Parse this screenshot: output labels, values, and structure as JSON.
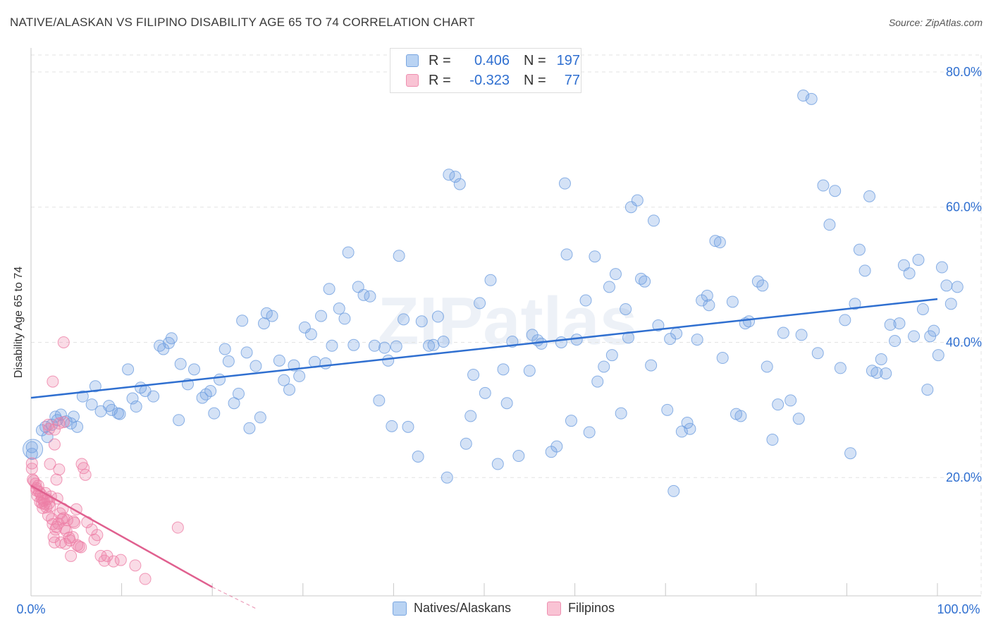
{
  "title": "NATIVE/ALASKAN VS FILIPINO DISABILITY AGE 65 TO 74 CORRELATION CHART",
  "source": "Source: ZipAtlas.com",
  "watermark": "ZIPatlas",
  "legend": {
    "rows": [
      {
        "r_label": "R =",
        "r_value": "0.406",
        "n_label": "N =",
        "n_value": "197",
        "color": "#6f9fe0"
      },
      {
        "r_label": "R =",
        "r_value": "-0.323",
        "n_label": "N =",
        "n_value": "77",
        "color": "#ee7fa6"
      }
    ]
  },
  "bottom_legend": [
    "Natives/Alaskans",
    "Filipinos"
  ],
  "chart_data": {
    "type": "scatter",
    "title": "NATIVE/ALASKAN VS FILIPINO DISABILITY AGE 65 TO 74 CORRELATION CHART",
    "xlabel": "",
    "ylabel": "Disability Age 65 to 74",
    "xlim": [
      0,
      100
    ],
    "ylim": [
      2.5,
      82.5
    ],
    "x_tick_labels": [
      "0.0%",
      "100.0%"
    ],
    "y_ticks": [
      20,
      40,
      60,
      80
    ],
    "y_tick_labels": [
      "20.0%",
      "40.0%",
      "60.0%",
      "80.0%"
    ],
    "grid": true,
    "legend_position": "top-center",
    "colors": {
      "natives": "#6f9fe0",
      "filipinos": "#ee7fa6",
      "natives_line": "#2f6fd0",
      "filipinos_line": "#e0608f"
    },
    "series": [
      {
        "name": "Natives/Alaskans",
        "R": 0.406,
        "N": 197,
        "trend": [
          [
            0,
            31.8
          ],
          [
            100,
            46.4
          ]
        ],
        "points": [
          [
            0.1,
            24.5
          ],
          [
            0.1,
            23.5
          ],
          [
            1.2,
            27
          ],
          [
            1.6,
            27.5
          ],
          [
            1.8,
            26
          ],
          [
            2.3,
            27.8
          ],
          [
            2.7,
            29
          ],
          [
            2.9,
            28.5
          ],
          [
            3.3,
            29.3
          ],
          [
            3.9,
            28.3
          ],
          [
            4.4,
            28
          ],
          [
            4.7,
            29
          ],
          [
            5.1,
            27.5
          ],
          [
            5.7,
            32
          ],
          [
            6.7,
            30.8
          ],
          [
            7.1,
            33.5
          ],
          [
            7.7,
            29.8
          ],
          [
            8.6,
            30.6
          ],
          [
            8.9,
            30
          ],
          [
            9.6,
            29.5
          ],
          [
            9.8,
            29.4
          ],
          [
            10.7,
            36
          ],
          [
            11.2,
            31.7
          ],
          [
            11.6,
            30.5
          ],
          [
            12.1,
            33.3
          ],
          [
            12.6,
            32.8
          ],
          [
            13.5,
            32
          ],
          [
            14.2,
            39.5
          ],
          [
            14.6,
            39
          ],
          [
            15.2,
            39.9
          ],
          [
            15.5,
            40.6
          ],
          [
            16.3,
            28.5
          ],
          [
            16.5,
            36.8
          ],
          [
            17.3,
            33.8
          ],
          [
            18,
            36
          ],
          [
            18.9,
            31.8
          ],
          [
            19.3,
            32.3
          ],
          [
            19.8,
            32.8
          ],
          [
            20.2,
            29.5
          ],
          [
            20.8,
            34.5
          ],
          [
            21.4,
            39
          ],
          [
            21.8,
            37.2
          ],
          [
            22.4,
            31
          ],
          [
            22.9,
            32.4
          ],
          [
            23.3,
            43.2
          ],
          [
            23.8,
            38.5
          ],
          [
            24.1,
            27.3
          ],
          [
            24.8,
            36.5
          ],
          [
            25.3,
            28.9
          ],
          [
            25.7,
            42.8
          ],
          [
            26,
            44.3
          ],
          [
            26.6,
            43.9
          ],
          [
            27.4,
            37.3
          ],
          [
            27.9,
            34.4
          ],
          [
            28.5,
            33
          ],
          [
            29,
            36.6
          ],
          [
            29.6,
            35
          ],
          [
            30.2,
            42.2
          ],
          [
            30.9,
            41.2
          ],
          [
            31.3,
            37.1
          ],
          [
            32,
            43.9
          ],
          [
            32.5,
            36.9
          ],
          [
            32.9,
            47.9
          ],
          [
            33.2,
            39.5
          ],
          [
            34,
            45
          ],
          [
            34.6,
            43.5
          ],
          [
            35,
            53.3
          ],
          [
            35.6,
            39.6
          ],
          [
            36.1,
            48.2
          ],
          [
            36.7,
            47
          ],
          [
            37.4,
            46.8
          ],
          [
            37.9,
            39.5
          ],
          [
            38.4,
            31.4
          ],
          [
            39,
            39.2
          ],
          [
            39.4,
            37.3
          ],
          [
            39.8,
            27.6
          ],
          [
            40.3,
            39.4
          ],
          [
            40.6,
            52.8
          ],
          [
            41.1,
            43.4
          ],
          [
            41.6,
            27.5
          ],
          [
            42.7,
            23.1
          ],
          [
            43.1,
            43.1
          ],
          [
            43.9,
            39.5
          ],
          [
            44.4,
            39.6
          ],
          [
            44.9,
            43.8
          ],
          [
            45.5,
            40.1
          ],
          [
            45.9,
            20
          ],
          [
            46.1,
            64.8
          ],
          [
            46.8,
            64.5
          ],
          [
            47.3,
            63.4
          ],
          [
            48,
            25
          ],
          [
            48.5,
            29.1
          ],
          [
            48.8,
            35.2
          ],
          [
            49.5,
            45.8
          ],
          [
            50.1,
            32.5
          ],
          [
            50.7,
            49.2
          ],
          [
            51.5,
            22
          ],
          [
            52.1,
            36
          ],
          [
            52.5,
            31
          ],
          [
            53.1,
            40.1
          ],
          [
            53.8,
            23.2
          ],
          [
            55,
            35.8
          ],
          [
            55.3,
            41.1
          ],
          [
            55.9,
            40.3
          ],
          [
            56.3,
            39.8
          ],
          [
            57.4,
            23.8
          ],
          [
            58,
            24.6
          ],
          [
            58.5,
            40
          ],
          [
            58.9,
            63.5
          ],
          [
            59.1,
            53
          ],
          [
            59.6,
            28.4
          ],
          [
            60.2,
            40.4
          ],
          [
            61.2,
            46.2
          ],
          [
            61.6,
            26.7
          ],
          [
            62.2,
            52.7
          ],
          [
            62.5,
            34.2
          ],
          [
            63.2,
            36.4
          ],
          [
            63.8,
            48.2
          ],
          [
            64.1,
            38.1
          ],
          [
            64.5,
            50.1
          ],
          [
            65.1,
            29.5
          ],
          [
            65.6,
            44.9
          ],
          [
            65.9,
            40.7
          ],
          [
            66.2,
            60
          ],
          [
            66.9,
            61
          ],
          [
            67.3,
            49.4
          ],
          [
            67.7,
            49
          ],
          [
            68.4,
            36.6
          ],
          [
            68.7,
            58
          ],
          [
            69.2,
            42.5
          ],
          [
            70.2,
            30
          ],
          [
            70.5,
            40.5
          ],
          [
            70.9,
            18
          ],
          [
            71.2,
            41.3
          ],
          [
            71.8,
            26.8
          ],
          [
            72.4,
            28.1
          ],
          [
            72.7,
            27.2
          ],
          [
            73.5,
            40.4
          ],
          [
            74,
            46.2
          ],
          [
            74.6,
            46.9
          ],
          [
            74.8,
            45.5
          ],
          [
            75.5,
            55
          ],
          [
            76,
            54.8
          ],
          [
            76.3,
            37.7
          ],
          [
            77.4,
            46
          ],
          [
            77.8,
            29.4
          ],
          [
            78.3,
            29.1
          ],
          [
            78.8,
            42.8
          ],
          [
            79.2,
            43.1
          ],
          [
            80.2,
            49
          ],
          [
            80.7,
            48.4
          ],
          [
            81.2,
            36.4
          ],
          [
            81.8,
            25.6
          ],
          [
            82.4,
            30.8
          ],
          [
            83,
            41.4
          ],
          [
            83.8,
            31.4
          ],
          [
            84.7,
            28.7
          ],
          [
            85,
            41.1
          ],
          [
            85.2,
            76.5
          ],
          [
            86.1,
            76
          ],
          [
            86.8,
            38.4
          ],
          [
            87.4,
            63.2
          ],
          [
            88.1,
            57.4
          ],
          [
            88.7,
            62.4
          ],
          [
            89.3,
            36.2
          ],
          [
            89.8,
            43.3
          ],
          [
            90.4,
            23.6
          ],
          [
            90.9,
            45.7
          ],
          [
            91.4,
            53.7
          ],
          [
            92,
            50.6
          ],
          [
            92.5,
            61.6
          ],
          [
            92.8,
            35.8
          ],
          [
            93.3,
            35.5
          ],
          [
            93.8,
            37.5
          ],
          [
            94.3,
            35.4
          ],
          [
            94.8,
            42.6
          ],
          [
            95.3,
            40.2
          ],
          [
            95.8,
            42.8
          ],
          [
            96.3,
            51.4
          ],
          [
            96.9,
            50.2
          ],
          [
            97.4,
            40.9
          ],
          [
            97.9,
            52.2
          ],
          [
            98.4,
            44.9
          ],
          [
            98.9,
            33
          ],
          [
            99.2,
            40.9
          ],
          [
            99.6,
            41.7
          ],
          [
            100.1,
            38.1
          ],
          [
            100.5,
            51.1
          ],
          [
            101,
            48.4
          ],
          [
            101.5,
            45.7
          ],
          [
            102.2,
            48.2
          ]
        ]
      },
      {
        "name": "Filipinos",
        "R": -0.323,
        "N": 77,
        "trend": [
          [
            0,
            18.8
          ],
          [
            20,
            3.8
          ]
        ],
        "trend_dashed": [
          [
            20,
            3.8
          ],
          [
            25,
            0.5
          ]
        ],
        "points": [
          [
            0.1,
            22.1
          ],
          [
            0.1,
            21.3
          ],
          [
            0.2,
            19.7
          ],
          [
            0.3,
            19.5
          ],
          [
            0.5,
            19.1
          ],
          [
            0.6,
            18.4
          ],
          [
            0.6,
            18.1
          ],
          [
            0.7,
            17.3
          ],
          [
            0.8,
            18.8
          ],
          [
            0.9,
            17.9
          ],
          [
            1,
            16.4
          ],
          [
            1.1,
            17.5
          ],
          [
            1.2,
            16.9
          ],
          [
            1.2,
            16.2
          ],
          [
            1.3,
            15.5
          ],
          [
            1.4,
            16.6
          ],
          [
            1.5,
            16.1
          ],
          [
            1.6,
            17.7
          ],
          [
            1.7,
            15.6
          ],
          [
            1.8,
            16.8
          ],
          [
            1.9,
            14.4
          ],
          [
            2,
            16.2
          ],
          [
            2.1,
            15.7
          ],
          [
            2.1,
            22
          ],
          [
            2.2,
            17.2
          ],
          [
            2.3,
            13.9
          ],
          [
            2.4,
            13.1
          ],
          [
            2.5,
            11.2
          ],
          [
            2.6,
            10.4
          ],
          [
            2.7,
            12.3
          ],
          [
            2.8,
            19.7
          ],
          [
            2.8,
            12.7
          ],
          [
            2.9,
            16.9
          ],
          [
            3,
            13.2
          ],
          [
            3.1,
            21.2
          ],
          [
            3.2,
            14.7
          ],
          [
            3.3,
            10.4
          ],
          [
            3.4,
            13.8
          ],
          [
            3.5,
            15.4
          ],
          [
            3.6,
            14
          ],
          [
            3.7,
            12.5
          ],
          [
            3.8,
            10.2
          ],
          [
            3.9,
            12.1
          ],
          [
            4,
            13.7
          ],
          [
            4.2,
            11.1
          ],
          [
            4.3,
            10.7
          ],
          [
            4.4,
            8.4
          ],
          [
            4.6,
            11.2
          ],
          [
            4.7,
            13.5
          ],
          [
            4.8,
            13.3
          ],
          [
            5,
            15.3
          ],
          [
            5.1,
            10
          ],
          [
            5.3,
            9.8
          ],
          [
            5.5,
            9.7
          ],
          [
            5.6,
            22
          ],
          [
            5.8,
            21.4
          ],
          [
            6,
            20.4
          ],
          [
            6.2,
            13.4
          ],
          [
            6.7,
            12.3
          ],
          [
            7,
            10.8
          ],
          [
            7.3,
            11.5
          ],
          [
            7.7,
            8.4
          ],
          [
            8.1,
            7.7
          ],
          [
            8.4,
            8.4
          ],
          [
            9.1,
            7.6
          ],
          [
            9.9,
            7.8
          ],
          [
            11.5,
            7
          ],
          [
            12.6,
            5
          ],
          [
            16.2,
            12.6
          ],
          [
            2.6,
            24.9
          ],
          [
            2.6,
            27.1
          ],
          [
            3.1,
            28
          ],
          [
            3.6,
            28.2
          ],
          [
            3.6,
            40
          ],
          [
            2.4,
            34.2
          ],
          [
            2,
            27.2
          ],
          [
            1.9,
            27.8
          ]
        ]
      }
    ]
  }
}
